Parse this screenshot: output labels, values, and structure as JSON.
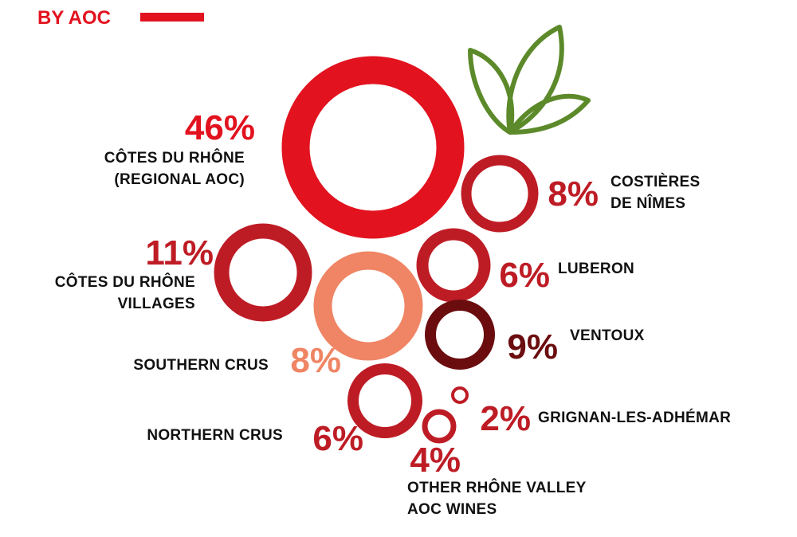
{
  "title": "BY AOC",
  "colors": {
    "brand_red": "#e2121f",
    "red": "#be1c25",
    "dark_red": "#6b0d0f",
    "salmon": "#ef8564",
    "leaf_green": "#5c8a2a",
    "label_text": "#111111"
  },
  "chart_data": {
    "type": "bubble",
    "title": "BY AOC",
    "unit": "%",
    "series": [
      {
        "name": "CÔTES DU RHÔNE (REGIONAL AOC)",
        "value": 46,
        "value_label": "46%",
        "label_lines": [
          "CÔTES DU RHÔNE",
          "(REGIONAL AOC)"
        ],
        "color": "#e2121f"
      },
      {
        "name": "COSTIÈRES DE NÎMES",
        "value": 8,
        "value_label": "8%",
        "label_lines": [
          "COSTIÈRES",
          "DE NÎMES"
        ],
        "color": "#be1c25"
      },
      {
        "name": "CÔTES DU RHÔNE VILLAGES",
        "value": 11,
        "value_label": "11%",
        "label_lines": [
          "CÔTES DU RHÔNE",
          "VILLAGES"
        ],
        "color": "#be1c25"
      },
      {
        "name": "LUBERON",
        "value": 6,
        "value_label": "6%",
        "label_lines": [
          "LUBERON"
        ],
        "color": "#be1c25"
      },
      {
        "name": "SOUTHERN CRUS",
        "value": 8,
        "value_label": "8%",
        "label_lines": [
          "SOUTHERN CRUS"
        ],
        "color": "#ef8564"
      },
      {
        "name": "VENTOUX",
        "value": 9,
        "value_label": "9%",
        "label_lines": [
          "VENTOUX"
        ],
        "color": "#6b0d0f"
      },
      {
        "name": "NORTHERN CRUS",
        "value": 6,
        "value_label": "6%",
        "label_lines": [
          "NORTHERN CRUS"
        ],
        "color": "#be1c25"
      },
      {
        "name": "GRIGNAN-LES-ADHÉMAR",
        "value": 2,
        "value_label": "2%",
        "label_lines": [
          "GRIGNAN-LES-ADHÉMAR"
        ],
        "color": "#be1c25"
      },
      {
        "name": "OTHER RHÔNE VALLEY AOC WINES",
        "value": 4,
        "value_label": "4%",
        "label_lines": [
          "OTHER RHÔNE VALLEY",
          "AOC WINES"
        ],
        "color": "#be1c25"
      }
    ]
  }
}
